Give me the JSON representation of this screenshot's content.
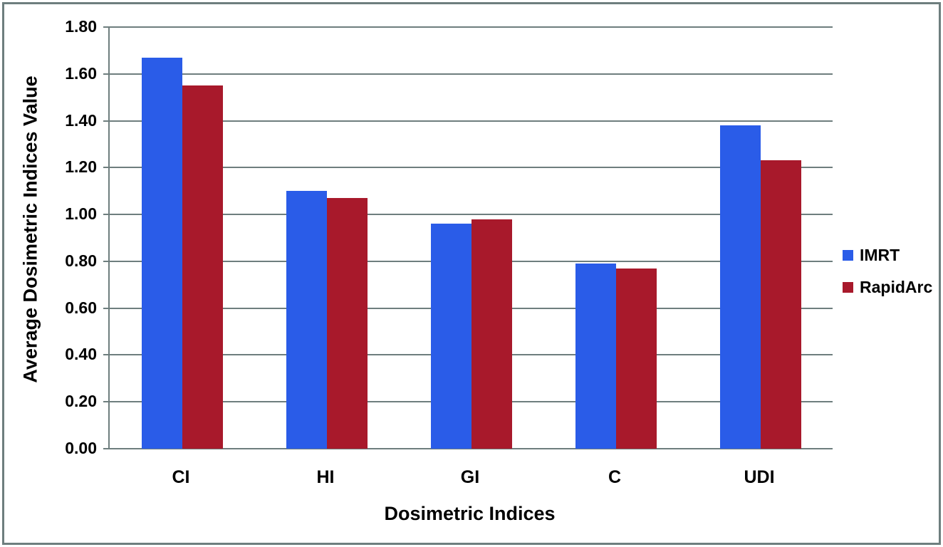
{
  "chart_data": {
    "type": "bar",
    "xlabel": "Dosimetric Indices",
    "ylabel": "Average Dosimetric Indices Value",
    "categories": [
      "CI",
      "HI",
      "GI",
      "C",
      "UDI"
    ],
    "series": [
      {
        "name": "IMRT",
        "color": "#2a5ce8",
        "values": [
          1.67,
          1.1,
          0.96,
          0.79,
          1.38
        ]
      },
      {
        "name": "RapidArc",
        "color": "#a8192b",
        "values": [
          1.55,
          1.07,
          0.98,
          0.77,
          1.23
        ]
      }
    ],
    "ylim": [
      0,
      1.8
    ],
    "ytick_step": 0.2,
    "ytick_labels": [
      "0.00",
      "0.20",
      "0.40",
      "0.60",
      "0.80",
      "1.00",
      "1.20",
      "1.40",
      "1.60",
      "1.80"
    ],
    "grid": true,
    "legend_position": "right"
  },
  "colors": {
    "grid": "#6e7e7e",
    "frame_border": "#6e7e7e",
    "text": "#000000",
    "background": "#ffffff"
  }
}
